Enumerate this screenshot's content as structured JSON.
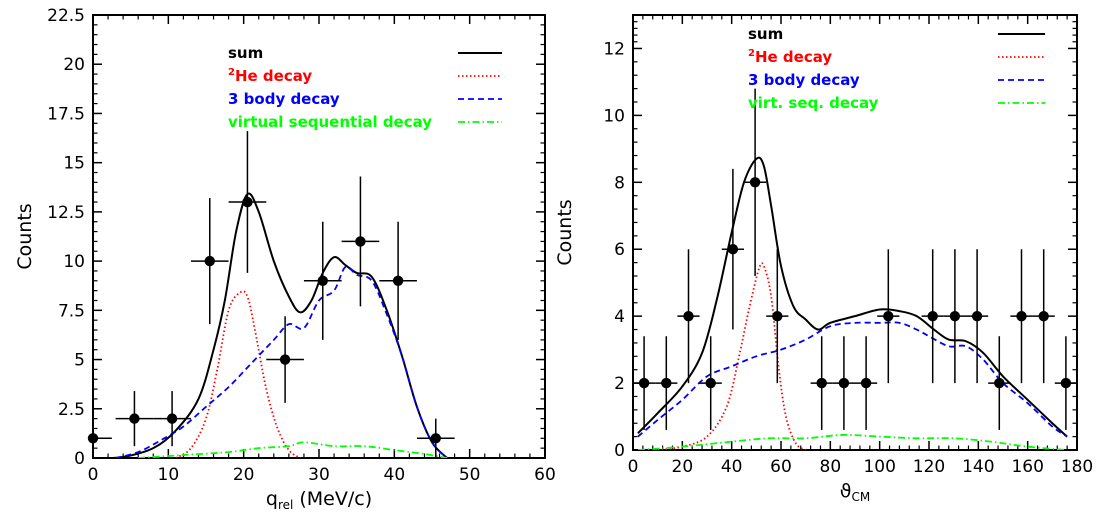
{
  "chart_data": [
    {
      "type": "line",
      "xlabel_main": "q",
      "xlabel_sub": "rel",
      "xlabel_unit": " (MeV/c)",
      "ylabel": "Counts",
      "xlim": [
        0,
        60
      ],
      "ylim": [
        0,
        22.5
      ],
      "xticks": [
        0,
        10,
        20,
        30,
        40,
        50,
        60
      ],
      "yticks": [
        0,
        2.5,
        5,
        7.5,
        10,
        12.5,
        15,
        17.5,
        20,
        22.5
      ],
      "ytick_labels": [
        "0",
        "2.5",
        "5",
        "7.5",
        "10",
        "12.5",
        "15",
        "17.5",
        "20",
        "22.5"
      ],
      "legend_position": "top-right",
      "legend": [
        {
          "sup": "",
          "label": "sum",
          "color": "#000000",
          "style": "solid"
        },
        {
          "sup": "2",
          "label": "He decay",
          "color": "#ff0000",
          "style": "dotted"
        },
        {
          "sup": "",
          "label": "3 body decay",
          "color": "#0000ff",
          "style": "dashed"
        },
        {
          "sup": "",
          "label": "virtual sequential decay",
          "color": "#00ff00",
          "style": "dashdot"
        }
      ],
      "data_points": [
        {
          "x": 0,
          "y": 1,
          "xerr": 2.5,
          "yerr": 1
        },
        {
          "x": 5.5,
          "y": 2,
          "xerr": 2.5,
          "yerr": 1.4
        },
        {
          "x": 10.5,
          "y": 2,
          "xerr": 2.5,
          "yerr": 1.4
        },
        {
          "x": 15.5,
          "y": 10,
          "xerr": 2.5,
          "yerr": 3.2
        },
        {
          "x": 20.5,
          "y": 13,
          "xerr": 2.5,
          "yerr": 3.6
        },
        {
          "x": 25.5,
          "y": 5,
          "xerr": 2.5,
          "yerr": 2.2
        },
        {
          "x": 30.5,
          "y": 9,
          "xerr": 2.5,
          "yerr": 3
        },
        {
          "x": 35.5,
          "y": 11,
          "xerr": 2.5,
          "yerr": 3.3
        },
        {
          "x": 40.5,
          "y": 9,
          "xerr": 2.5,
          "yerr": 3
        },
        {
          "x": 45.5,
          "y": 1,
          "xerr": 2.5,
          "yerr": 1
        }
      ],
      "series": [
        {
          "color": "#000000",
          "style": "solid",
          "x": [
            1,
            4,
            8,
            11,
            14,
            16,
            17.5,
            19,
            20.5,
            22,
            24,
            26,
            27.5,
            29,
            30.5,
            32,
            33.5,
            35,
            37,
            39,
            41,
            43,
            45,
            47
          ],
          "y": [
            0,
            0.05,
            0.5,
            1.4,
            3,
            5.5,
            8,
            11.5,
            13.4,
            12.5,
            10,
            8.2,
            7.4,
            8,
            9.4,
            10.2,
            9.8,
            9.4,
            9.2,
            7.5,
            5.2,
            2.6,
            0.8,
            0
          ]
        },
        {
          "color": "#ff0000",
          "style": "dotted",
          "x": [
            11,
            13,
            15,
            16.5,
            18,
            19.5,
            20.5,
            21.5,
            23,
            24.5,
            26,
            27.5
          ],
          "y": [
            0,
            0.5,
            2,
            4.5,
            7.5,
            8.4,
            8.2,
            6.5,
            3.5,
            1.5,
            0.4,
            0
          ]
        },
        {
          "color": "#0000ff",
          "style": "dashed",
          "x": [
            3,
            6,
            9,
            12,
            15,
            18,
            21,
            24,
            26,
            28,
            30,
            32,
            33.5,
            35,
            37,
            39,
            41,
            43,
            45,
            47
          ],
          "y": [
            0,
            0.3,
            0.9,
            1.6,
            2.6,
            3.6,
            4.8,
            6,
            6.8,
            6.6,
            8,
            8.5,
            9.7,
            9.3,
            9,
            7.3,
            5.2,
            2.6,
            0.8,
            0
          ]
        },
        {
          "color": "#00ff00",
          "style": "dashdot",
          "x": [
            6,
            12,
            18,
            22,
            26,
            28,
            32,
            36,
            40,
            44,
            47
          ],
          "y": [
            0,
            0.15,
            0.3,
            0.5,
            0.6,
            0.8,
            0.6,
            0.6,
            0.4,
            0.2,
            0
          ]
        }
      ]
    },
    {
      "type": "line",
      "xlabel_main": "ϑ",
      "xlabel_sub": "CM",
      "xlabel_unit": "",
      "ylabel": "Counts",
      "xlim": [
        0,
        180
      ],
      "ylim": [
        0,
        13
      ],
      "xticks": [
        0,
        20,
        40,
        60,
        80,
        100,
        120,
        140,
        160,
        180
      ],
      "yticks": [
        0,
        2,
        4,
        6,
        8,
        10,
        12
      ],
      "ytick_labels": [
        "0",
        "2",
        "4",
        "6",
        "8",
        "10",
        "12"
      ],
      "legend_position": "top-right",
      "legend": [
        {
          "sup": "",
          "label": "sum",
          "color": "#000000",
          "style": "solid"
        },
        {
          "sup": "2",
          "label": "He decay",
          "color": "#ff0000",
          "style": "dotted"
        },
        {
          "sup": "",
          "label": "3 body decay",
          "color": "#0000ff",
          "style": "dashed"
        },
        {
          "sup": "",
          "label": "virt. seq. decay",
          "color": "#00ff00",
          "style": "dashdot"
        }
      ],
      "data_points": [
        {
          "x": 4.5,
          "y": 2,
          "xerr": 4.5,
          "yerr": 1.4
        },
        {
          "x": 13.5,
          "y": 2,
          "xerr": 4.5,
          "yerr": 1.4
        },
        {
          "x": 22.5,
          "y": 4,
          "xerr": 4.5,
          "yerr": 2
        },
        {
          "x": 31.5,
          "y": 2,
          "xerr": 4.5,
          "yerr": 1.4
        },
        {
          "x": 40.5,
          "y": 6,
          "xerr": 4.5,
          "yerr": 2.4
        },
        {
          "x": 49.5,
          "y": 8,
          "xerr": 4.5,
          "yerr": 2.8
        },
        {
          "x": 58.5,
          "y": 4,
          "xerr": 4.5,
          "yerr": 2
        },
        {
          "x": 76.5,
          "y": 2,
          "xerr": 4.5,
          "yerr": 1.4
        },
        {
          "x": 85.5,
          "y": 2,
          "xerr": 4.5,
          "yerr": 1.4
        },
        {
          "x": 94.5,
          "y": 2,
          "xerr": 4.5,
          "yerr": 1.4
        },
        {
          "x": 103.5,
          "y": 4,
          "xerr": 4.5,
          "yerr": 2
        },
        {
          "x": 121.5,
          "y": 4,
          "xerr": 4.5,
          "yerr": 2
        },
        {
          "x": 130.5,
          "y": 4,
          "xerr": 4.5,
          "yerr": 2
        },
        {
          "x": 139.5,
          "y": 4,
          "xerr": 4.5,
          "yerr": 2
        },
        {
          "x": 148.5,
          "y": 2,
          "xerr": 4.5,
          "yerr": 1.4
        },
        {
          "x": 157.5,
          "y": 4,
          "xerr": 4.5,
          "yerr": 2
        },
        {
          "x": 166.5,
          "y": 4,
          "xerr": 4.5,
          "yerr": 2
        },
        {
          "x": 175.5,
          "y": 2,
          "xerr": 4.5,
          "yerr": 1.4
        }
      ],
      "series": [
        {
          "color": "#000000",
          "style": "solid",
          "x": [
            2,
            10,
            20,
            28,
            34,
            40,
            45,
            50,
            53,
            56,
            60,
            65,
            70,
            75,
            80,
            90,
            100,
            108,
            115,
            122,
            128,
            135,
            142,
            150,
            160,
            170,
            176
          ],
          "y": [
            0.5,
            1.1,
            1.9,
            2.9,
            4.5,
            6.5,
            8,
            8.7,
            8.5,
            7.3,
            5.5,
            4.3,
            3.9,
            3.6,
            3.8,
            4,
            4.2,
            4.15,
            4,
            3.6,
            3.3,
            3.25,
            2.9,
            2.2,
            1.5,
            0.8,
            0.4
          ]
        },
        {
          "color": "#ff0000",
          "style": "dotted",
          "x": [
            10,
            20,
            30,
            38,
            43,
            47,
            51,
            53,
            56,
            59,
            62,
            66,
            70
          ],
          "y": [
            0,
            0.1,
            0.4,
            1.3,
            2.8,
            4.2,
            5.4,
            5.5,
            4.6,
            2.5,
            1,
            0.2,
            0
          ]
        },
        {
          "color": "#0000ff",
          "style": "dashed",
          "x": [
            2,
            10,
            20,
            30,
            40,
            50,
            60,
            70,
            80,
            90,
            100,
            108,
            115,
            120,
            128,
            135,
            142,
            150,
            160,
            170,
            176
          ],
          "y": [
            0.4,
            0.9,
            1.5,
            2.2,
            2.5,
            2.8,
            3,
            3.3,
            3.7,
            3.8,
            3.8,
            3.8,
            3.6,
            3.4,
            3.1,
            3.1,
            2.7,
            2,
            1.4,
            0.7,
            0.4
          ]
        },
        {
          "color": "#00ff00",
          "style": "dashdot",
          "x": [
            2,
            20,
            40,
            55,
            70,
            85,
            100,
            115,
            130,
            145,
            160,
            176
          ],
          "y": [
            0,
            0.1,
            0.25,
            0.35,
            0.35,
            0.45,
            0.4,
            0.35,
            0.35,
            0.25,
            0.1,
            0
          ]
        }
      ]
    }
  ]
}
